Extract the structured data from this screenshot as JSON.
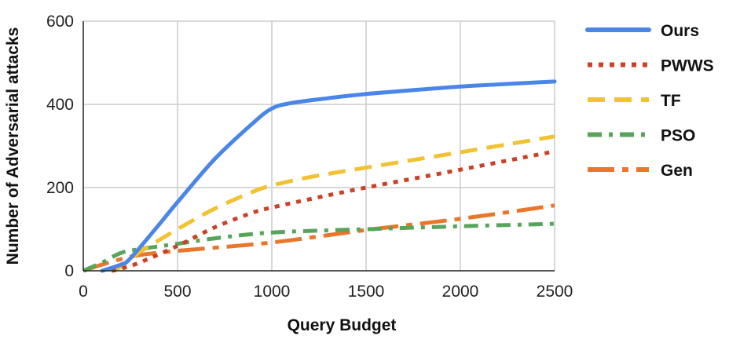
{
  "chart_data": {
    "type": "line",
    "xlabel": "Query Budget",
    "ylabel": "Number of Adversarial attacks",
    "xlim": [
      0,
      2500
    ],
    "ylim": [
      0,
      600
    ],
    "x_ticks": [
      0,
      500,
      1000,
      1500,
      2000,
      2500
    ],
    "y_ticks": [
      0,
      200,
      400,
      600
    ],
    "grid": true,
    "legend_position": "right",
    "series": [
      {
        "name": "Ours",
        "color": "#4a86e8",
        "style": "solid",
        "points": [
          [
            100,
            0
          ],
          [
            200,
            15
          ],
          [
            250,
            30
          ],
          [
            400,
            110
          ],
          [
            500,
            165
          ],
          [
            700,
            270
          ],
          [
            900,
            355
          ],
          [
            1000,
            390
          ],
          [
            1100,
            403
          ],
          [
            1300,
            415
          ],
          [
            1500,
            425
          ],
          [
            1800,
            436
          ],
          [
            2000,
            443
          ],
          [
            2200,
            448
          ],
          [
            2500,
            455
          ]
        ]
      },
      {
        "name": "PWWS",
        "color": "#cc4125",
        "style": "dotted",
        "points": [
          [
            150,
            0
          ],
          [
            200,
            5
          ],
          [
            300,
            20
          ],
          [
            500,
            60
          ],
          [
            700,
            105
          ],
          [
            900,
            140
          ],
          [
            1000,
            152
          ],
          [
            1200,
            172
          ],
          [
            1500,
            200
          ],
          [
            2000,
            243
          ],
          [
            2500,
            287
          ]
        ]
      },
      {
        "name": "TF",
        "color": "#f1c232",
        "style": "dashed",
        "points": [
          [
            150,
            0
          ],
          [
            200,
            10
          ],
          [
            300,
            45
          ],
          [
            500,
            100
          ],
          [
            700,
            150
          ],
          [
            900,
            190
          ],
          [
            1000,
            205
          ],
          [
            1200,
            225
          ],
          [
            1500,
            248
          ],
          [
            2000,
            285
          ],
          [
            2500,
            323
          ]
        ]
      },
      {
        "name": "PSO",
        "color": "#57a55a",
        "style": "dashdot",
        "points": [
          [
            0,
            0
          ],
          [
            100,
            20
          ],
          [
            200,
            43
          ],
          [
            300,
            52
          ],
          [
            500,
            65
          ],
          [
            700,
            78
          ],
          [
            1000,
            92
          ],
          [
            1500,
            100
          ],
          [
            2000,
            107
          ],
          [
            2500,
            113
          ]
        ]
      },
      {
        "name": "Gen",
        "color": "#e9762b",
        "style": "longdash",
        "points": [
          [
            0,
            0
          ],
          [
            100,
            15
          ],
          [
            200,
            28
          ],
          [
            300,
            38
          ],
          [
            500,
            48
          ],
          [
            1000,
            68
          ],
          [
            1500,
            98
          ],
          [
            2000,
            125
          ],
          [
            2500,
            157
          ]
        ]
      }
    ]
  }
}
